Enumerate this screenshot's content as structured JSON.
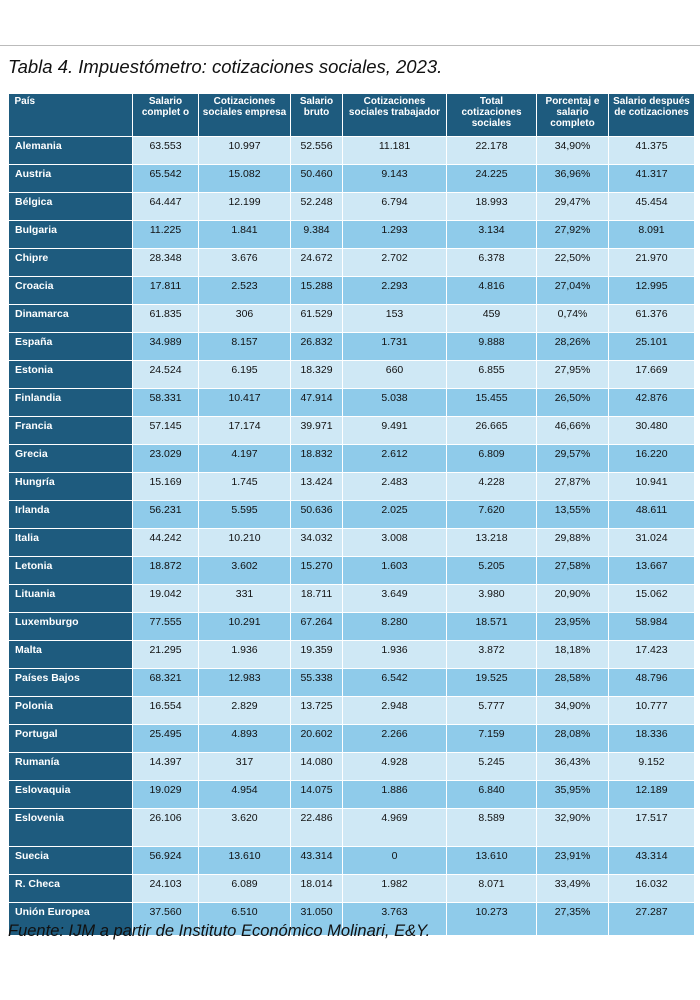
{
  "title": "Tabla 4. Impuestómetro: cotizaciones sociales, 2023.",
  "source": "Fuente: IJM a partir de Instituto Económico Molinari, E&Y.",
  "table": {
    "headers": [
      "País",
      "Salario complet o",
      "Cotizaciones sociales empresa",
      "Salario bruto",
      "Cotizaciones sociales trabajador",
      "Total cotizaciones sociales",
      "Porcentaj e salario completo",
      "Salario después de cotizaciones"
    ],
    "rows": [
      [
        "Alemania",
        "63.553",
        "10.997",
        "52.556",
        "11.181",
        "22.178",
        "34,90%",
        "41.375"
      ],
      [
        "Austria",
        "65.542",
        "15.082",
        "50.460",
        "9.143",
        "24.225",
        "36,96%",
        "41.317"
      ],
      [
        "Bélgica",
        "64.447",
        "12.199",
        "52.248",
        "6.794",
        "18.993",
        "29,47%",
        "45.454"
      ],
      [
        "Bulgaria",
        "11.225",
        "1.841",
        "9.384",
        "1.293",
        "3.134",
        "27,92%",
        "8.091"
      ],
      [
        "Chipre",
        "28.348",
        "3.676",
        "24.672",
        "2.702",
        "6.378",
        "22,50%",
        "21.970"
      ],
      [
        "Croacia",
        "17.811",
        "2.523",
        "15.288",
        "2.293",
        "4.816",
        "27,04%",
        "12.995"
      ],
      [
        "Dinamarca",
        "61.835",
        "306",
        "61.529",
        "153",
        "459",
        "0,74%",
        "61.376"
      ],
      [
        "España",
        "34.989",
        "8.157",
        "26.832",
        "1.731",
        "9.888",
        "28,26%",
        "25.101"
      ],
      [
        "Estonia",
        "24.524",
        "6.195",
        "18.329",
        "660",
        "6.855",
        "27,95%",
        "17.669"
      ],
      [
        "Finlandia",
        "58.331",
        "10.417",
        "47.914",
        "5.038",
        "15.455",
        "26,50%",
        "42.876"
      ],
      [
        "Francia",
        "57.145",
        "17.174",
        "39.971",
        "9.491",
        "26.665",
        "46,66%",
        "30.480"
      ],
      [
        "Grecia",
        "23.029",
        "4.197",
        "18.832",
        "2.612",
        "6.809",
        "29,57%",
        "16.220"
      ],
      [
        "Hungría",
        "15.169",
        "1.745",
        "13.424",
        "2.483",
        "4.228",
        "27,87%",
        "10.941"
      ],
      [
        "Irlanda",
        "56.231",
        "5.595",
        "50.636",
        "2.025",
        "7.620",
        "13,55%",
        "48.611"
      ],
      [
        "Italia",
        "44.242",
        "10.210",
        "34.032",
        "3.008",
        "13.218",
        "29,88%",
        "31.024"
      ],
      [
        "Letonia",
        "18.872",
        "3.602",
        "15.270",
        "1.603",
        "5.205",
        "27,58%",
        "13.667"
      ],
      [
        "Lituania",
        "19.042",
        "331",
        "18.711",
        "3.649",
        "3.980",
        "20,90%",
        "15.062"
      ],
      [
        "Luxemburgo",
        "77.555",
        "10.291",
        "67.264",
        "8.280",
        "18.571",
        "23,95%",
        "58.984"
      ],
      [
        "Malta",
        "21.295",
        "1.936",
        "19.359",
        "1.936",
        "3.872",
        "18,18%",
        "17.423"
      ],
      [
        "Países Bajos",
        "68.321",
        "12.983",
        "55.338",
        "6.542",
        "19.525",
        "28,58%",
        "48.796"
      ],
      [
        "Polonia",
        "16.554",
        "2.829",
        "13.725",
        "2.948",
        "5.777",
        "34,90%",
        "10.777"
      ],
      [
        "Portugal",
        "25.495",
        "4.893",
        "20.602",
        "2.266",
        "7.159",
        "28,08%",
        "18.336"
      ],
      [
        "Rumanía",
        "14.397",
        "317",
        "14.080",
        "4.928",
        "5.245",
        "36,43%",
        "9.152"
      ],
      [
        "Eslovaquia",
        "19.029",
        "4.954",
        "14.075",
        "1.886",
        "6.840",
        "35,95%",
        "12.189"
      ],
      [
        "Eslovenia",
        "26.106",
        "3.620",
        "22.486",
        "4.969",
        "8.589",
        "32,90%",
        "17.517"
      ],
      [
        "Suecia",
        "56.924",
        "13.610",
        "43.314",
        "0",
        "13.610",
        "23,91%",
        "43.314"
      ],
      [
        "R. Checa",
        "24.103",
        "6.089",
        "18.014",
        "1.982",
        "8.071",
        "33,49%",
        "16.032"
      ],
      [
        "Unión Europea",
        "37.560",
        "6.510",
        "31.050",
        "3.763",
        "10.273",
        "27,35%",
        "27.287"
      ]
    ]
  }
}
